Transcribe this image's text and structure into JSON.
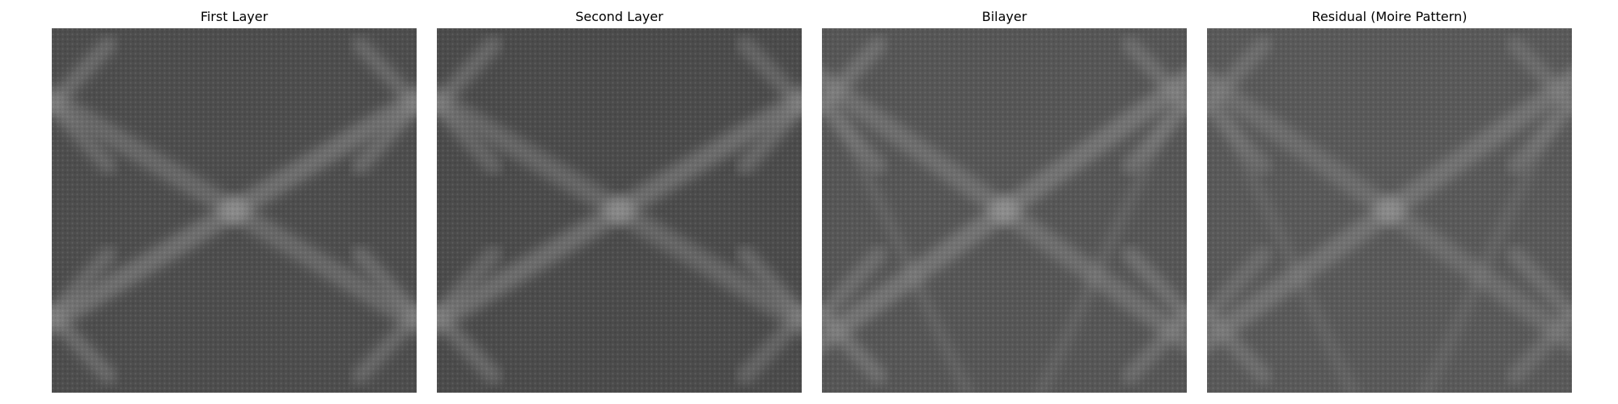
{
  "figure": {
    "panels": [
      {
        "title": "First Layer",
        "pattern": "layer1",
        "base_color": "#4d4d4d",
        "band_color": "#8a8a8a"
      },
      {
        "title": "Second Layer",
        "pattern": "layer2",
        "base_color": "#4b4b4b",
        "band_color": "#888888"
      },
      {
        "title": "Bilayer",
        "pattern": "bilayer",
        "base_color": "#565656",
        "band_color": "#8c8c8c"
      },
      {
        "title": "Residual (Moire Pattern)",
        "pattern": "residual",
        "base_color": "#595959",
        "band_color": "#868686"
      }
    ]
  }
}
